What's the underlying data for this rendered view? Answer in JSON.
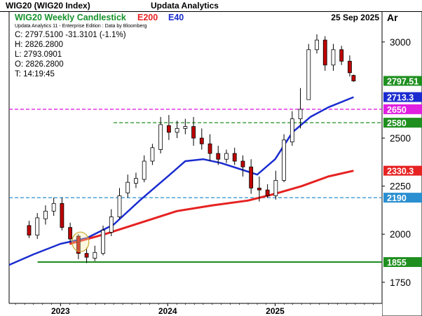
{
  "header": {
    "window_title": "WIG20 (WIG20 Index)",
    "app_title": "Updata Analytics",
    "brand": "updata"
  },
  "legend": {
    "chart_title": "WIG20 Weekly Candlestick",
    "ma_long": "E200",
    "ma_short": "E40",
    "date": "25 Sep 2025",
    "scale_mode": "Ar",
    "edition": "Updata Analytics 11 - Enterprise Edition : Data by Bloomberg"
  },
  "ohlc": {
    "close": "C: 2797.5100  -31.3101 (-1.1%)",
    "high": "H: 2826.2800",
    "low": "L: 2793.0901",
    "open": "O: 2826.2800",
    "time": "T: 14:19:45"
  },
  "colors": {
    "up": "#ffffff",
    "down": "#c00000",
    "e40": "#1a2ccf",
    "e200": "#e62222",
    "title_green": "#17922b",
    "level_magenta": "#e020e0",
    "level_green": "#1f8f1f",
    "level_blue": "#2a8fd0",
    "support_green": "#1c8a1c"
  },
  "chart_data": {
    "type": "candlestick",
    "title": "WIG20 Weekly Candlestick",
    "ylim": [
      1640,
      3160
    ],
    "y_ticks": [
      1750,
      2000,
      2250,
      2500,
      3000
    ],
    "x_labels": [
      "2023",
      "2024",
      "2025"
    ],
    "x_label_dates": [
      "2023-01-01",
      "2024-01-01",
      "2025-01-01"
    ],
    "x_range": [
      "2022-07-10",
      "2025-12-31"
    ],
    "series": [
      {
        "name": "WIG20",
        "kind": "candles",
        "dates": [
          "2022-09-16",
          "2022-10-14",
          "2022-11-11",
          "2022-12-09",
          "2023-01-06",
          "2023-02-03",
          "2023-03-03",
          "2023-03-31",
          "2023-04-28",
          "2023-05-26",
          "2023-06-23",
          "2023-07-21",
          "2023-08-18",
          "2023-09-15",
          "2023-10-13",
          "2023-11-10",
          "2023-12-08",
          "2024-01-05",
          "2024-02-02",
          "2024-03-01",
          "2024-03-29",
          "2024-04-26",
          "2024-05-24",
          "2024-06-21",
          "2024-07-19",
          "2024-08-16",
          "2024-09-13",
          "2024-10-11",
          "2024-11-08",
          "2024-12-06",
          "2025-01-03",
          "2025-01-31",
          "2025-02-28",
          "2025-03-28",
          "2025-04-25",
          "2025-05-23",
          "2025-06-20",
          "2025-07-18",
          "2025-08-15",
          "2025-09-12",
          "2025-09-25"
        ],
        "open": [
          2045,
          1995,
          2080,
          2120,
          2160,
          2035,
          1990,
          1900,
          1875,
          1900,
          2010,
          2090,
          2215,
          2265,
          2285,
          2380,
          2440,
          2565,
          2530,
          2550,
          2560,
          2500,
          2470,
          2420,
          2390,
          2420,
          2380,
          2350,
          2240,
          2230,
          2200,
          2280,
          2480,
          2600,
          2700,
          2960,
          3010,
          2880,
          2960,
          2900,
          2826
        ],
        "close": [
          1995,
          2085,
          2120,
          2160,
          2035,
          1975,
          1900,
          1880,
          1905,
          2020,
          2090,
          2200,
          2270,
          2290,
          2380,
          2450,
          2570,
          2530,
          2550,
          2560,
          2500,
          2470,
          2420,
          2390,
          2420,
          2380,
          2350,
          2240,
          2230,
          2200,
          2280,
          2490,
          2600,
          2650,
          2960,
          3010,
          2880,
          2960,
          2900,
          2840,
          2797
        ],
        "high": [
          2070,
          2110,
          2150,
          2190,
          2190,
          2060,
          2000,
          1930,
          1940,
          2045,
          2130,
          2240,
          2310,
          2320,
          2410,
          2470,
          2610,
          2620,
          2590,
          2600,
          2610,
          2550,
          2520,
          2460,
          2440,
          2450,
          2410,
          2390,
          2300,
          2260,
          2330,
          2520,
          2640,
          2760,
          2990,
          3040,
          3030,
          2990,
          2980,
          2930,
          2830
        ],
        "low": [
          1980,
          1975,
          2050,
          2095,
          2020,
          1960,
          1870,
          1850,
          1860,
          1890,
          1990,
          2080,
          2190,
          2240,
          2270,
          2360,
          2420,
          2490,
          2500,
          2520,
          2460,
          2440,
          2380,
          2360,
          2370,
          2360,
          2300,
          2210,
          2170,
          2190,
          2180,
          2270,
          2460,
          2550,
          2700,
          2940,
          2850,
          2850,
          2880,
          2820,
          2793
        ]
      },
      {
        "name": "E40",
        "kind": "line",
        "x": [
          "2022-07-10",
          "2022-10-01",
          "2023-01-01",
          "2023-04-01",
          "2023-07-01",
          "2023-10-01",
          "2024-01-01",
          "2024-03-01",
          "2024-05-01",
          "2024-07-01",
          "2024-09-01",
          "2024-11-01",
          "2025-01-01",
          "2025-03-01",
          "2025-05-01",
          "2025-07-01",
          "2025-09-25"
        ],
        "y": [
          1840,
          1895,
          1950,
          1980,
          2050,
          2180,
          2300,
          2380,
          2390,
          2370,
          2340,
          2310,
          2390,
          2530,
          2610,
          2660,
          2713
        ]
      },
      {
        "name": "E200",
        "kind": "line",
        "x": [
          "2023-02-01",
          "2023-06-01",
          "2023-10-01",
          "2024-02-01",
          "2024-06-01",
          "2024-10-01",
          "2025-01-01",
          "2025-04-01",
          "2025-07-01",
          "2025-09-25"
        ],
        "y": [
          1950,
          2000,
          2060,
          2120,
          2150,
          2175,
          2210,
          2250,
          2300,
          2330
        ]
      }
    ],
    "levels": [
      {
        "value": 2650,
        "style": "dashed",
        "color_key": "level_magenta",
        "label": "2650",
        "x_start": "2022-07-10"
      },
      {
        "value": 2580,
        "style": "dashed",
        "color_key": "level_green",
        "label": "2580",
        "x_start": "2023-07-01"
      },
      {
        "value": 2190,
        "style": "dashed",
        "color_key": "level_blue",
        "label": "2190",
        "x_start": "2022-07-10"
      },
      {
        "value": 1855,
        "style": "solid",
        "color_key": "support_green",
        "label": "1855",
        "x_start": "2022-10-15"
      }
    ],
    "price_tags": [
      {
        "value": 2797.51,
        "label": "2797.51",
        "bg": "#1f8f1f",
        "fg": "#ffffff"
      },
      {
        "value": 2713.3,
        "label": "2713.3",
        "bg": "#1a2ccf",
        "fg": "#ffffff"
      },
      {
        "value": 2650,
        "label": "2650",
        "bg": "#e020e0",
        "fg": "#ffffff"
      },
      {
        "value": 2580,
        "label": "2580",
        "bg": "#1f8f1f",
        "fg": "#ffffff"
      },
      {
        "value": 2330.3,
        "label": "2330.3",
        "bg": "#e62222",
        "fg": "#ffffff"
      },
      {
        "value": 2190,
        "label": "2190",
        "bg": "#2a8fd0",
        "fg": "#ffffff"
      },
      {
        "value": 1855,
        "label": "1855",
        "bg": "#1f8f1f",
        "fg": "#ffffff"
      }
    ],
    "annotation": {
      "type": "ellipse",
      "date": "2023-03-10",
      "value": 1960,
      "note": "E40/E200 crossover"
    }
  }
}
